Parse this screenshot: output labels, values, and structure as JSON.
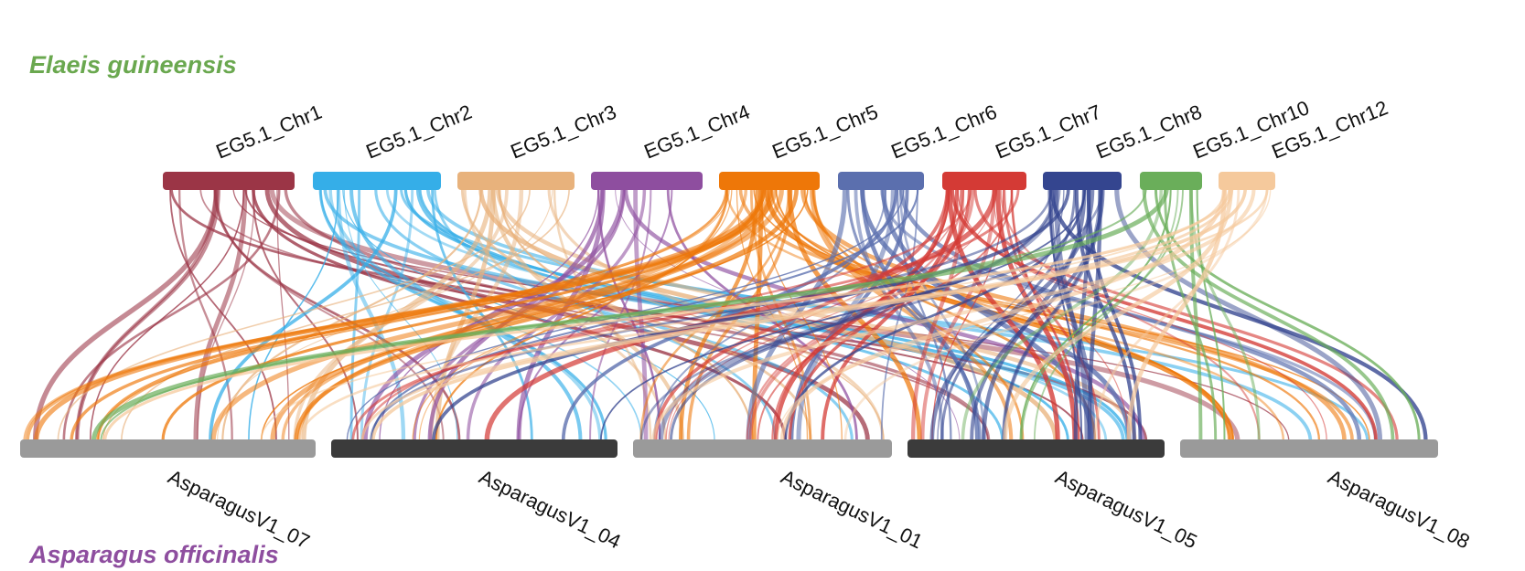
{
  "species": {
    "top": {
      "name": "Elaeis guineensis",
      "color": "#6aa84f"
    },
    "bottom": {
      "name": "Asparagus officinalis",
      "color": "#8e4e9f"
    }
  },
  "top_chromosomes": [
    {
      "label": "EG5.1_Chr1",
      "color": "#9b3546"
    },
    {
      "label": "EG5.1_Chr2",
      "color": "#35aee8"
    },
    {
      "label": "EG5.1_Chr3",
      "color": "#e8b27c"
    },
    {
      "label": "EG5.1_Chr4",
      "color": "#8e4e9f"
    },
    {
      "label": "EG5.1_Chr5",
      "color": "#ee7708"
    },
    {
      "label": "EG5.1_Chr6",
      "color": "#5b6fae"
    },
    {
      "label": "EG5.1_Chr7",
      "color": "#d43a35"
    },
    {
      "label": "EG5.1_Chr8",
      "color": "#34458f"
    },
    {
      "label": "EG5.1_Chr10",
      "color": "#6aae5a"
    },
    {
      "label": "EG5.1_Chr12",
      "color": "#f5c99c"
    }
  ],
  "bottom_chromosomes": [
    {
      "label": "AsparagusV1_07",
      "color": "#9a9a9a"
    },
    {
      "label": "AsparagusV1_04",
      "color": "#3b3b3b"
    },
    {
      "label": "AsparagusV1_01",
      "color": "#9a9a9a"
    },
    {
      "label": "AsparagusV1_05",
      "color": "#3b3b3b"
    },
    {
      "label": "AsparagusV1_08",
      "color": "#9a9a9a"
    }
  ]
}
